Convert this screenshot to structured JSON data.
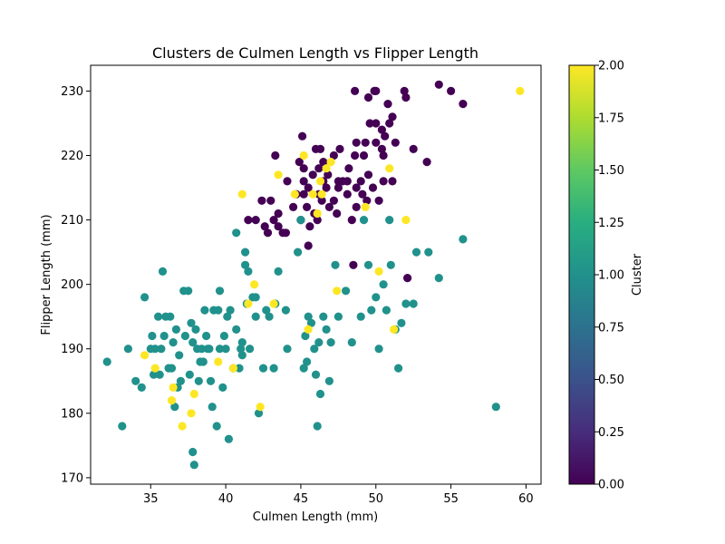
{
  "chart_data": {
    "type": "scatter",
    "title": "Clusters de Culmen Length vs Flipper Length",
    "xlabel": "Culmen Length (mm)",
    "ylabel": "Flipper Length (mm)",
    "xlim": [
      31,
      61
    ],
    "ylim": [
      169,
      234
    ],
    "xticks": [
      35,
      40,
      45,
      50,
      55,
      60
    ],
    "yticks": [
      170,
      180,
      190,
      200,
      210,
      220,
      230
    ],
    "grid": false,
    "colormap": "viridis",
    "colors": {
      "0": "#440154",
      "1": "#21918c",
      "2": "#fde725"
    },
    "colorbar": {
      "label": "Cluster",
      "range": [
        0,
        2
      ],
      "ticks": [
        "0.00",
        "0.25",
        "0.50",
        "0.75",
        "1.00",
        "1.25",
        "1.50",
        "1.75",
        "2.00"
      ]
    },
    "series": [
      {
        "cluster": 0,
        "points": [
          [
            48.6,
            230
          ],
          [
            49.5,
            229
          ],
          [
            49.9,
            230
          ],
          [
            50.0,
            230
          ],
          [
            51.9,
            230
          ],
          [
            52.0,
            229
          ],
          [
            50.8,
            228
          ],
          [
            51.1,
            226
          ],
          [
            54.2,
            231
          ],
          [
            55.0,
            230
          ],
          [
            55.8,
            228
          ],
          [
            45.1,
            223
          ],
          [
            46.0,
            221
          ],
          [
            46.3,
            221
          ],
          [
            47.6,
            221
          ],
          [
            48.7,
            222
          ],
          [
            49.3,
            222
          ],
          [
            49.6,
            225
          ],
          [
            50.0,
            225
          ],
          [
            50.4,
            224
          ],
          [
            50.6,
            223
          ],
          [
            52.5,
            221
          ],
          [
            53.4,
            219
          ],
          [
            43.3,
            220
          ],
          [
            44.9,
            219
          ],
          [
            45.2,
            218
          ],
          [
            46.5,
            219
          ],
          [
            47.2,
            220
          ],
          [
            48.2,
            218
          ],
          [
            48.6,
            220
          ],
          [
            49.2,
            220
          ],
          [
            50.0,
            222
          ],
          [
            50.4,
            221
          ],
          [
            50.9,
            225
          ],
          [
            51.3,
            222
          ],
          [
            44.1,
            216
          ],
          [
            45.2,
            216
          ],
          [
            45.8,
            217
          ],
          [
            46.2,
            218
          ],
          [
            46.8,
            217
          ],
          [
            47.5,
            216
          ],
          [
            48.1,
            216
          ],
          [
            48.7,
            215
          ],
          [
            49.0,
            216
          ],
          [
            49.5,
            217
          ],
          [
            50.5,
            216
          ],
          [
            51.1,
            216
          ],
          [
            41.5,
            210
          ],
          [
            42.0,
            210
          ],
          [
            42.6,
            209
          ],
          [
            42.8,
            208
          ],
          [
            43.2,
            210
          ],
          [
            43.5,
            209
          ],
          [
            43.8,
            208
          ],
          [
            44.0,
            208
          ],
          [
            44.5,
            212
          ],
          [
            45.0,
            210
          ],
          [
            45.4,
            212
          ],
          [
            45.6,
            209
          ],
          [
            45.9,
            211
          ],
          [
            46.1,
            210
          ],
          [
            46.4,
            213
          ],
          [
            46.7,
            215
          ],
          [
            46.9,
            212
          ],
          [
            47.2,
            213
          ],
          [
            47.5,
            215
          ],
          [
            47.8,
            216
          ],
          [
            48.1,
            214
          ],
          [
            48.4,
            210
          ],
          [
            48.7,
            212
          ],
          [
            49.1,
            214
          ],
          [
            49.4,
            213
          ],
          [
            49.8,
            215
          ],
          [
            50.2,
            213
          ],
          [
            50.5,
            220
          ],
          [
            42.4,
            213
          ],
          [
            43.0,
            213
          ],
          [
            43.5,
            211
          ],
          [
            44.7,
            214
          ],
          [
            45.2,
            214
          ],
          [
            45.5,
            215
          ],
          [
            46.2,
            214
          ],
          [
            46.5,
            216
          ],
          [
            47.4,
            211
          ],
          [
            48.5,
            203
          ],
          [
            52.1,
            201
          ],
          [
            45.5,
            206
          ]
        ]
      },
      {
        "cluster": 1,
        "points": [
          [
            32.1,
            188
          ],
          [
            33.1,
            178
          ],
          [
            33.5,
            190
          ],
          [
            34.0,
            185
          ],
          [
            34.4,
            184
          ],
          [
            34.6,
            198
          ],
          [
            35.0,
            190
          ],
          [
            35.1,
            192
          ],
          [
            35.2,
            186
          ],
          [
            35.3,
            190
          ],
          [
            35.5,
            195
          ],
          [
            35.7,
            190
          ],
          [
            35.8,
            202
          ],
          [
            35.9,
            192
          ],
          [
            36.0,
            195
          ],
          [
            36.2,
            187
          ],
          [
            36.3,
            195
          ],
          [
            36.4,
            187
          ],
          [
            36.6,
            181
          ],
          [
            36.7,
            193
          ],
          [
            36.9,
            189
          ],
          [
            37.0,
            185
          ],
          [
            37.2,
            199
          ],
          [
            37.3,
            192
          ],
          [
            37.5,
            199
          ],
          [
            37.6,
            186
          ],
          [
            37.7,
            194
          ],
          [
            37.8,
            174
          ],
          [
            37.9,
            172
          ],
          [
            38.0,
            193
          ],
          [
            38.1,
            190
          ],
          [
            38.2,
            185
          ],
          [
            38.4,
            190
          ],
          [
            38.5,
            188
          ],
          [
            38.6,
            196
          ],
          [
            38.8,
            190
          ],
          [
            38.9,
            190
          ],
          [
            39.0,
            185
          ],
          [
            39.1,
            181
          ],
          [
            39.2,
            196
          ],
          [
            39.4,
            178
          ],
          [
            39.5,
            196
          ],
          [
            39.6,
            190
          ],
          [
            39.8,
            184
          ],
          [
            40.0,
            190
          ],
          [
            40.2,
            176
          ],
          [
            40.3,
            196
          ],
          [
            40.5,
            187
          ],
          [
            40.7,
            193
          ],
          [
            40.9,
            187
          ],
          [
            41.0,
            190
          ],
          [
            41.1,
            189
          ],
          [
            41.3,
            205
          ],
          [
            41.4,
            197
          ],
          [
            41.5,
            202
          ],
          [
            41.6,
            190
          ],
          [
            41.8,
            198
          ],
          [
            42.0,
            195
          ],
          [
            42.2,
            180
          ],
          [
            42.5,
            187
          ],
          [
            42.7,
            196
          ],
          [
            42.9,
            195
          ],
          [
            43.2,
            187
          ],
          [
            43.5,
            202
          ],
          [
            44.0,
            196
          ],
          [
            44.8,
            205
          ],
          [
            45.0,
            210
          ],
          [
            45.2,
            187
          ],
          [
            45.4,
            188
          ],
          [
            45.5,
            195
          ],
          [
            45.7,
            194
          ],
          [
            45.9,
            190
          ],
          [
            46.0,
            186
          ],
          [
            46.1,
            178
          ],
          [
            46.2,
            191
          ],
          [
            46.5,
            195
          ],
          [
            46.7,
            193
          ],
          [
            46.9,
            185
          ],
          [
            47.0,
            191
          ],
          [
            47.5,
            195
          ],
          [
            48.0,
            199
          ],
          [
            48.4,
            191
          ],
          [
            49.0,
            195
          ],
          [
            49.2,
            210
          ],
          [
            49.5,
            203
          ],
          [
            49.7,
            196
          ],
          [
            50.0,
            198
          ],
          [
            50.2,
            190
          ],
          [
            50.5,
            200
          ],
          [
            50.7,
            196
          ],
          [
            50.9,
            210
          ],
          [
            51.0,
            203
          ],
          [
            51.3,
            193
          ],
          [
            51.5,
            187
          ],
          [
            51.7,
            194
          ],
          [
            52.0,
            197
          ],
          [
            52.5,
            197
          ],
          [
            52.7,
            205
          ],
          [
            53.5,
            205
          ],
          [
            54.2,
            201
          ],
          [
            55.8,
            207
          ],
          [
            58.0,
            181
          ],
          [
            40.7,
            208
          ],
          [
            41.3,
            203
          ],
          [
            39.6,
            199
          ],
          [
            38.7,
            192
          ],
          [
            37.8,
            191
          ],
          [
            36.5,
            191
          ],
          [
            42.0,
            198
          ],
          [
            43.3,
            197
          ],
          [
            44.1,
            190
          ],
          [
            40.1,
            195
          ],
          [
            38.3,
            188
          ],
          [
            39.9,
            192
          ],
          [
            41.1,
            191
          ],
          [
            36.8,
            184
          ],
          [
            35.6,
            186
          ],
          [
            45.3,
            192
          ],
          [
            46.3,
            183
          ],
          [
            47.3,
            203
          ]
        ]
      },
      {
        "cluster": 2,
        "points": [
          [
            34.6,
            189
          ],
          [
            35.3,
            187
          ],
          [
            36.4,
            182
          ],
          [
            36.5,
            184
          ],
          [
            37.1,
            178
          ],
          [
            37.7,
            180
          ],
          [
            37.9,
            183
          ],
          [
            39.5,
            188
          ],
          [
            40.5,
            187
          ],
          [
            41.5,
            197
          ],
          [
            41.9,
            200
          ],
          [
            42.3,
            181
          ],
          [
            43.2,
            197
          ],
          [
            43.5,
            217
          ],
          [
            44.6,
            214
          ],
          [
            45.2,
            220
          ],
          [
            45.8,
            214
          ],
          [
            46.1,
            211
          ],
          [
            46.4,
            214
          ],
          [
            46.7,
            218
          ],
          [
            47.0,
            219
          ],
          [
            47.4,
            199
          ],
          [
            49.3,
            212
          ],
          [
            50.2,
            202
          ],
          [
            50.9,
            218
          ],
          [
            52.0,
            210
          ],
          [
            59.6,
            230
          ],
          [
            46.3,
            216
          ],
          [
            41.1,
            214
          ],
          [
            45.5,
            193
          ],
          [
            51.2,
            193
          ]
        ]
      }
    ]
  }
}
